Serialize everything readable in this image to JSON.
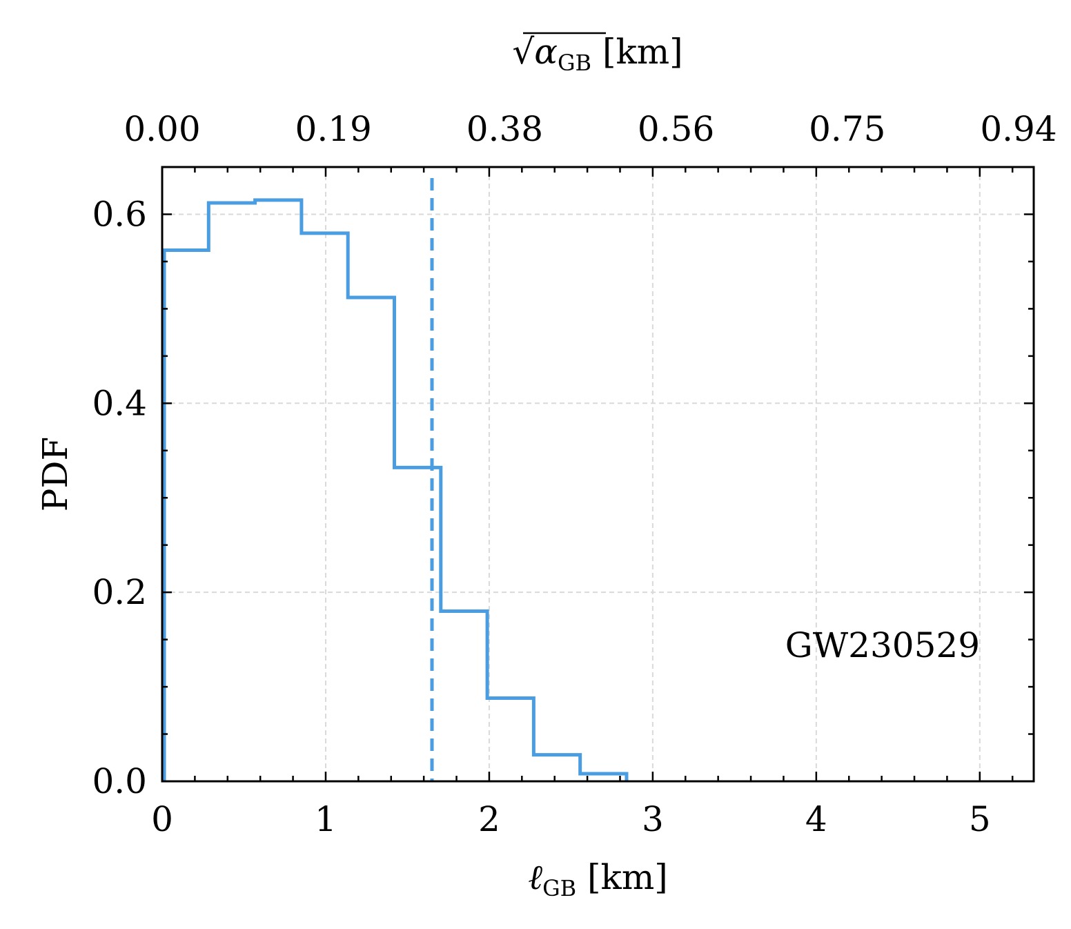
{
  "chart_data": {
    "type": "histogram",
    "xlabel": "ℓGB [km]",
    "ylabel": "PDF",
    "top_axis_label": "√αGB [km]",
    "xlim": [
      0,
      5.33
    ],
    "ylim": [
      0,
      0.65
    ],
    "x_ticks": [
      "0",
      "1",
      "2",
      "3",
      "4",
      "5"
    ],
    "y_ticks": [
      "0.0",
      "0.2",
      "0.4",
      "0.6"
    ],
    "top_ticks": [
      "0.00",
      "0.19",
      "0.38",
      "0.56",
      "0.75",
      "0.94"
    ],
    "bin_edges": [
      0,
      0.284,
      0.568,
      0.852,
      1.136,
      1.42,
      1.704,
      1.988,
      2.272,
      2.556,
      2.84
    ],
    "values": [
      0.562,
      0.612,
      0.615,
      0.58,
      0.512,
      0.332,
      0.18,
      0.088,
      0.028,
      0.008
    ],
    "threshold_line_x": 1.65,
    "annotation": "GW230529",
    "grid": true,
    "color": "#4a9de0"
  }
}
